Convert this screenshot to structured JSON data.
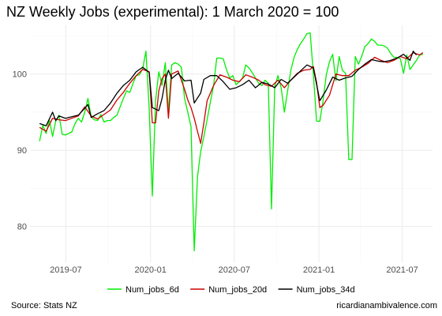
{
  "chart_data": {
    "type": "line",
    "title": "NZ Weekly Jobs (experimental): 1  March 2020 = 100",
    "caption_left": "Source: Stats NZ",
    "caption_right": "ricardianambivalence.com",
    "xlabel": "",
    "ylabel": "",
    "x_ticks": [
      "2019-07",
      "2020-01",
      "2020-07",
      "2021-01",
      "2021-07"
    ],
    "y_ticks": [
      80,
      90,
      100
    ],
    "xlim": [
      "2019-04-14",
      "2021-09-05"
    ],
    "ylim": [
      75.3,
      106.4
    ],
    "grid": true,
    "legend_position": "bottom",
    "series": [
      {
        "name": "Num_jobs_6d",
        "color": "#00ee00",
        "points": [
          [
            "2019-05-05",
            91.2
          ],
          [
            "2019-05-12",
            93.3
          ],
          [
            "2019-05-19",
            92.2
          ],
          [
            "2019-05-26",
            94.0
          ],
          [
            "2019-06-02",
            91.8
          ],
          [
            "2019-06-09",
            93.8
          ],
          [
            "2019-06-16",
            94.6
          ],
          [
            "2019-06-23",
            92.1
          ],
          [
            "2019-06-30",
            92.0
          ],
          [
            "2019-07-07",
            92.2
          ],
          [
            "2019-07-14",
            92.4
          ],
          [
            "2019-07-21",
            93.5
          ],
          [
            "2019-07-28",
            94.2
          ],
          [
            "2019-08-04",
            93.7
          ],
          [
            "2019-08-11",
            95.0
          ],
          [
            "2019-08-18",
            96.8
          ],
          [
            "2019-08-25",
            94.4
          ],
          [
            "2019-09-01",
            94.0
          ],
          [
            "2019-09-08",
            93.9
          ],
          [
            "2019-09-15",
            94.7
          ],
          [
            "2019-09-22",
            93.7
          ],
          [
            "2019-09-29",
            93.9
          ],
          [
            "2019-10-06",
            93.9
          ],
          [
            "2019-10-13",
            94.3
          ],
          [
            "2019-10-20",
            94.6
          ],
          [
            "2019-10-27",
            95.7
          ],
          [
            "2019-11-03",
            96.8
          ],
          [
            "2019-11-10",
            97.8
          ],
          [
            "2019-11-17",
            97.6
          ],
          [
            "2019-11-24",
            98.8
          ],
          [
            "2019-12-01",
            99.8
          ],
          [
            "2019-12-08",
            99.9
          ],
          [
            "2019-12-15",
            100.7
          ],
          [
            "2019-12-22",
            103.0
          ],
          [
            "2019-12-29",
            95.5
          ],
          [
            "2020-01-05",
            84.0
          ],
          [
            "2020-01-12",
            96.5
          ],
          [
            "2020-01-19",
            100.3
          ],
          [
            "2020-01-26",
            98.5
          ],
          [
            "2020-02-02",
            101.5
          ],
          [
            "2020-02-09",
            95.0
          ],
          [
            "2020-02-16",
            101.2
          ],
          [
            "2020-02-23",
            101.5
          ],
          [
            "2020-03-01",
            101.3
          ],
          [
            "2020-03-08",
            100.9
          ],
          [
            "2020-03-15",
            96.8
          ],
          [
            "2020-03-22",
            95.0
          ],
          [
            "2020-03-29",
            93.1
          ],
          [
            "2020-04-05",
            76.8
          ],
          [
            "2020-04-12",
            86.5
          ],
          [
            "2020-04-19",
            89.8
          ],
          [
            "2020-04-26",
            91.8
          ],
          [
            "2020-05-03",
            94.0
          ],
          [
            "2020-05-10",
            96.3
          ],
          [
            "2020-05-17",
            98.5
          ],
          [
            "2020-05-24",
            102.1
          ],
          [
            "2020-05-31",
            102.1
          ],
          [
            "2020-06-07",
            102.0
          ],
          [
            "2020-06-14",
            100.6
          ],
          [
            "2020-06-21",
            99.5
          ],
          [
            "2020-06-28",
            99.8
          ],
          [
            "2020-07-05",
            98.6
          ],
          [
            "2020-07-12",
            99.0
          ],
          [
            "2020-07-19",
            99.5
          ],
          [
            "2020-07-26",
            101.2
          ],
          [
            "2020-08-02",
            100.8
          ],
          [
            "2020-08-09",
            100.2
          ],
          [
            "2020-08-16",
            99.5
          ],
          [
            "2020-08-23",
            98.8
          ],
          [
            "2020-08-30",
            98.5
          ],
          [
            "2020-09-06",
            99.2
          ],
          [
            "2020-09-13",
            98.8
          ],
          [
            "2020-09-20",
            82.3
          ],
          [
            "2020-09-27",
            98.4
          ],
          [
            "2020-10-04",
            99.8
          ],
          [
            "2020-10-11",
            98.2
          ],
          [
            "2020-10-18",
            95.0
          ],
          [
            "2020-10-25",
            97.8
          ],
          [
            "2020-11-01",
            100.5
          ],
          [
            "2020-11-08",
            102.2
          ],
          [
            "2020-11-15",
            103.2
          ],
          [
            "2020-11-22",
            104.0
          ],
          [
            "2020-11-29",
            104.6
          ],
          [
            "2020-12-06",
            105.3
          ],
          [
            "2020-12-13",
            105.4
          ],
          [
            "2020-12-20",
            100.0
          ],
          [
            "2020-12-27",
            93.8
          ],
          [
            "2021-01-03",
            93.8
          ],
          [
            "2021-01-10",
            96.5
          ],
          [
            "2021-01-17",
            99.9
          ],
          [
            "2021-01-24",
            101.6
          ],
          [
            "2021-01-31",
            102.6
          ],
          [
            "2021-02-07",
            99.1
          ],
          [
            "2021-02-14",
            102.3
          ],
          [
            "2021-02-21",
            100.5
          ],
          [
            "2021-02-28",
            100.1
          ],
          [
            "2021-03-07",
            88.8
          ],
          [
            "2021-03-14",
            88.8
          ],
          [
            "2021-03-21",
            102.3
          ],
          [
            "2021-03-28",
            101.3
          ],
          [
            "2021-04-04",
            102.3
          ],
          [
            "2021-04-11",
            103.6
          ],
          [
            "2021-04-18",
            104.0
          ],
          [
            "2021-04-25",
            104.6
          ],
          [
            "2021-05-02",
            104.3
          ],
          [
            "2021-05-09",
            103.8
          ],
          [
            "2021-05-16",
            103.8
          ],
          [
            "2021-05-23",
            103.7
          ],
          [
            "2021-05-30",
            103.4
          ],
          [
            "2021-06-06",
            102.7
          ],
          [
            "2021-06-13",
            102.2
          ],
          [
            "2021-06-20",
            102.2
          ],
          [
            "2021-06-27",
            102.0
          ],
          [
            "2021-07-04",
            100.1
          ],
          [
            "2021-07-11",
            102.5
          ],
          [
            "2021-07-18",
            100.6
          ],
          [
            "2021-07-25",
            101.2
          ],
          [
            "2021-08-01",
            101.8
          ],
          [
            "2021-08-08",
            102.5
          ],
          [
            "2021-08-15",
            102.6
          ]
        ]
      },
      {
        "name": "Num_jobs_20d",
        "color": "#cc0000",
        "points": [
          [
            "2019-05-05",
            93.0
          ],
          [
            "2019-05-19",
            92.5
          ],
          [
            "2019-06-02",
            94.2
          ],
          [
            "2019-06-16",
            94.0
          ],
          [
            "2019-06-30",
            93.9
          ],
          [
            "2019-07-14",
            94.2
          ],
          [
            "2019-07-28",
            94.5
          ],
          [
            "2019-08-11",
            95.7
          ],
          [
            "2019-08-25",
            94.5
          ],
          [
            "2019-09-08",
            94.1
          ],
          [
            "2019-09-22",
            94.7
          ],
          [
            "2019-10-06",
            95.3
          ],
          [
            "2019-10-20",
            96.6
          ],
          [
            "2019-11-03",
            97.6
          ],
          [
            "2019-11-17",
            98.8
          ],
          [
            "2019-12-01",
            99.8
          ],
          [
            "2019-12-15",
            100.6
          ],
          [
            "2019-12-29",
            100.3
          ],
          [
            "2020-01-05",
            93.6
          ],
          [
            "2020-01-12",
            93.6
          ],
          [
            "2020-01-19",
            97.8
          ],
          [
            "2020-01-26",
            99.4
          ],
          [
            "2020-02-02",
            100.0
          ],
          [
            "2020-02-09",
            94.2
          ],
          [
            "2020-02-16",
            100.0
          ],
          [
            "2020-03-01",
            100.4
          ],
          [
            "2020-03-15",
            98.0
          ],
          [
            "2020-03-22",
            96.6
          ],
          [
            "2020-03-29",
            95.6
          ],
          [
            "2020-04-05",
            94.2
          ],
          [
            "2020-04-12",
            92.5
          ],
          [
            "2020-04-19",
            90.9
          ],
          [
            "2020-04-26",
            93.6
          ],
          [
            "2020-05-03",
            96.5
          ],
          [
            "2020-05-17",
            98.5
          ],
          [
            "2020-05-31",
            99.9
          ],
          [
            "2020-06-14",
            99.6
          ],
          [
            "2020-06-28",
            99.2
          ],
          [
            "2020-07-12",
            99.0
          ],
          [
            "2020-07-26",
            99.9
          ],
          [
            "2020-08-09",
            99.6
          ],
          [
            "2020-08-23",
            99.2
          ],
          [
            "2020-09-06",
            98.6
          ],
          [
            "2020-09-20",
            98.4
          ],
          [
            "2020-10-04",
            99.2
          ],
          [
            "2020-10-18",
            98.2
          ],
          [
            "2020-11-01",
            99.2
          ],
          [
            "2020-11-15",
            100.1
          ],
          [
            "2020-11-29",
            100.5
          ],
          [
            "2020-12-13",
            100.6
          ],
          [
            "2020-12-20",
            101.0
          ],
          [
            "2020-12-27",
            98.9
          ],
          [
            "2021-01-03",
            95.6
          ],
          [
            "2021-01-10",
            95.9
          ],
          [
            "2021-01-24",
            97.2
          ],
          [
            "2021-02-07",
            100.0
          ],
          [
            "2021-02-21",
            99.8
          ],
          [
            "2021-03-07",
            99.8
          ],
          [
            "2021-03-21",
            100.5
          ],
          [
            "2021-04-04",
            100.9
          ],
          [
            "2021-04-18",
            101.4
          ],
          [
            "2021-05-02",
            102.2
          ],
          [
            "2021-05-16",
            101.8
          ],
          [
            "2021-05-30",
            101.5
          ],
          [
            "2021-06-13",
            101.8
          ],
          [
            "2021-06-27",
            102.3
          ],
          [
            "2021-07-11",
            102.0
          ],
          [
            "2021-07-25",
            102.8
          ],
          [
            "2021-08-08",
            102.5
          ],
          [
            "2021-08-15",
            102.8
          ]
        ]
      },
      {
        "name": "Num_jobs_34d",
        "color": "#000000",
        "points": [
          [
            "2019-05-05",
            93.5
          ],
          [
            "2019-05-19",
            93.2
          ],
          [
            "2019-06-02",
            95.0
          ],
          [
            "2019-06-09",
            93.9
          ],
          [
            "2019-06-16",
            94.5
          ],
          [
            "2019-06-30",
            94.2
          ],
          [
            "2019-07-14",
            94.4
          ],
          [
            "2019-07-28",
            94.6
          ],
          [
            "2019-08-11",
            95.5
          ],
          [
            "2019-08-18",
            96.0
          ],
          [
            "2019-08-25",
            94.3
          ],
          [
            "2019-09-08",
            94.8
          ],
          [
            "2019-09-22",
            95.2
          ],
          [
            "2019-10-06",
            96.2
          ],
          [
            "2019-10-20",
            97.5
          ],
          [
            "2019-11-03",
            98.5
          ],
          [
            "2019-11-17",
            99.2
          ],
          [
            "2019-12-01",
            100.3
          ],
          [
            "2019-12-15",
            100.9
          ],
          [
            "2019-12-29",
            100.2
          ],
          [
            "2020-01-05",
            95.6
          ],
          [
            "2020-01-19",
            95.2
          ],
          [
            "2020-01-26",
            96.8
          ],
          [
            "2020-02-02",
            99.2
          ],
          [
            "2020-02-09",
            100.5
          ],
          [
            "2020-02-16",
            99.4
          ],
          [
            "2020-03-01",
            100.1
          ],
          [
            "2020-03-15",
            99.1
          ],
          [
            "2020-03-29",
            99.2
          ],
          [
            "2020-04-05",
            96.2
          ],
          [
            "2020-04-19",
            97.5
          ],
          [
            "2020-04-26",
            99.3
          ],
          [
            "2020-05-10",
            99.8
          ],
          [
            "2020-05-24",
            99.8
          ],
          [
            "2020-06-07",
            99.0
          ],
          [
            "2020-06-21",
            98.0
          ],
          [
            "2020-07-05",
            98.2
          ],
          [
            "2020-07-19",
            98.6
          ],
          [
            "2020-08-02",
            99.2
          ],
          [
            "2020-08-16",
            98.2
          ],
          [
            "2020-08-30",
            98.9
          ],
          [
            "2020-09-13",
            98.7
          ],
          [
            "2020-09-27",
            98.2
          ],
          [
            "2020-10-11",
            99.3
          ],
          [
            "2020-10-25",
            98.8
          ],
          [
            "2020-11-08",
            99.6
          ],
          [
            "2020-11-22",
            100.4
          ],
          [
            "2020-12-06",
            101.2
          ],
          [
            "2020-12-20",
            100.8
          ],
          [
            "2021-01-03",
            96.5
          ],
          [
            "2021-01-17",
            97.9
          ],
          [
            "2021-01-31",
            99.6
          ],
          [
            "2021-02-14",
            99.2
          ],
          [
            "2021-02-28",
            99.5
          ],
          [
            "2021-03-14",
            99.7
          ],
          [
            "2021-03-28",
            100.6
          ],
          [
            "2021-04-11",
            101.3
          ],
          [
            "2021-04-25",
            101.9
          ],
          [
            "2021-05-09",
            101.7
          ],
          [
            "2021-05-23",
            101.6
          ],
          [
            "2021-06-06",
            101.8
          ],
          [
            "2021-06-20",
            102.1
          ],
          [
            "2021-07-04",
            102.6
          ],
          [
            "2021-07-18",
            101.8
          ],
          [
            "2021-07-25",
            103.0
          ],
          [
            "2021-08-01",
            102.5
          ]
        ]
      }
    ]
  }
}
